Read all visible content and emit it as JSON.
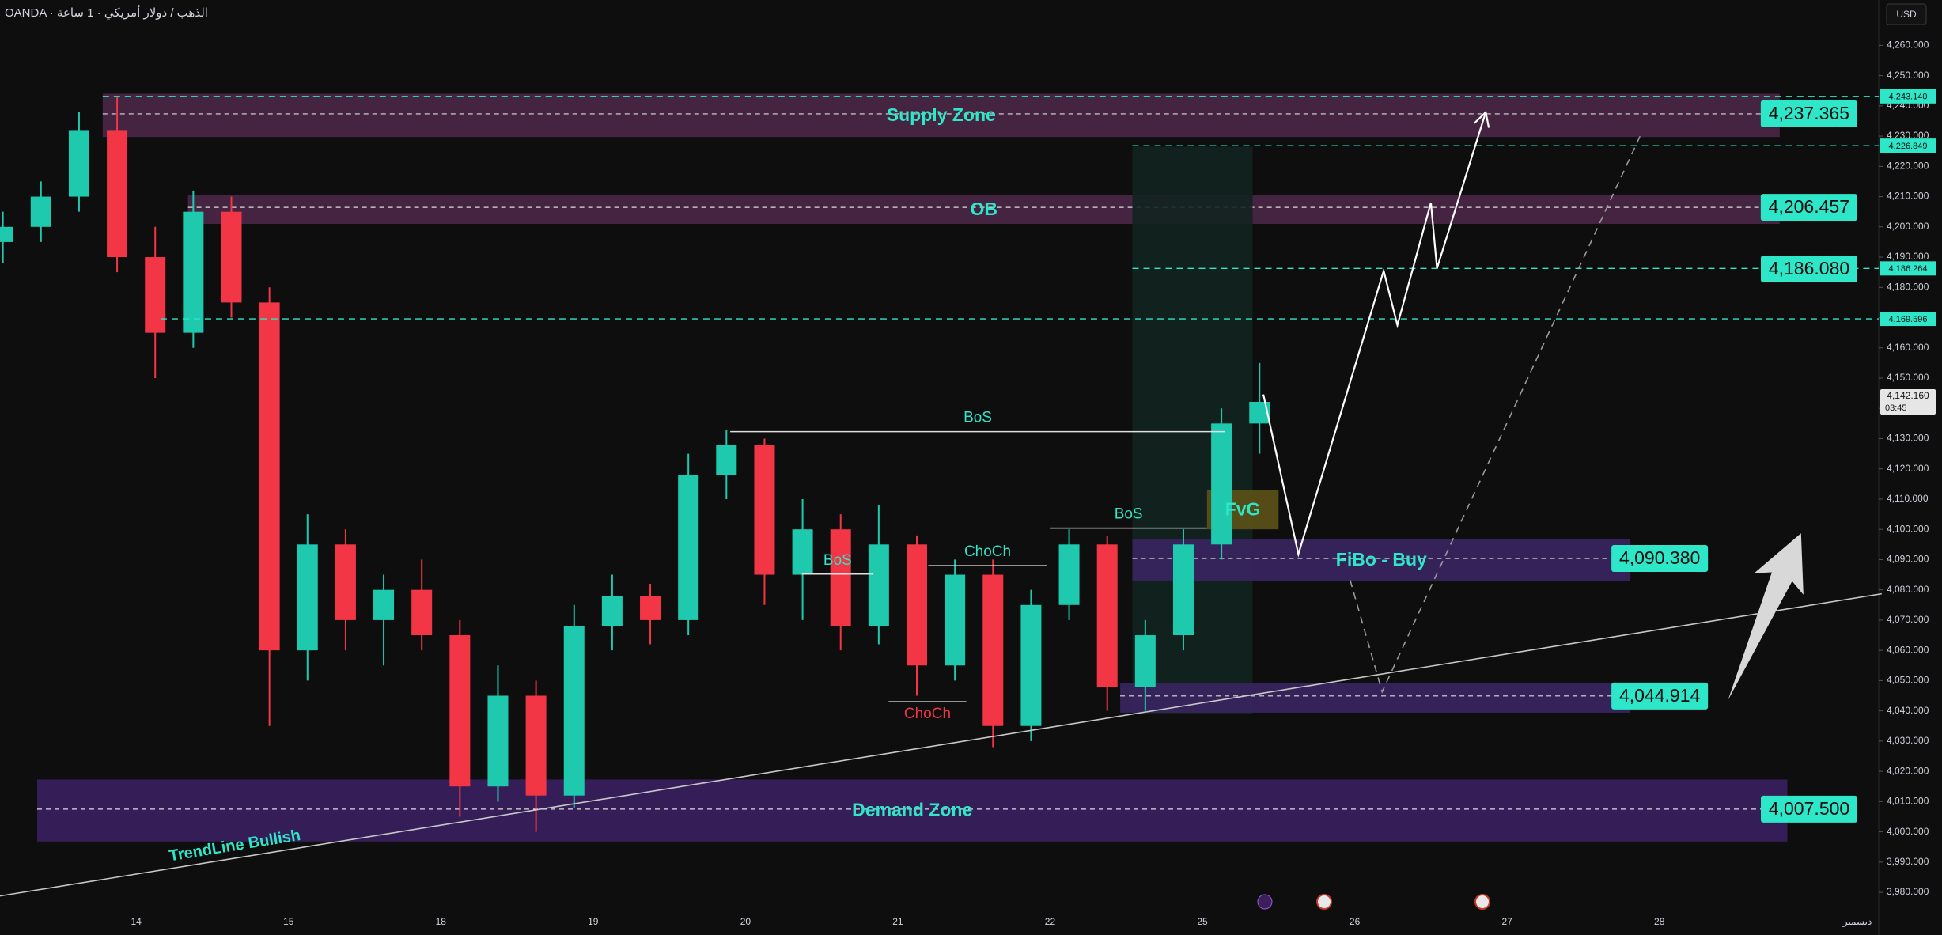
{
  "chart_data": {
    "type": "candlestick",
    "title": "OANDA · الذهب / دولار أمريكي · 1 ساعة",
    "currency": "USD",
    "up_color": "#1fc9ae",
    "down_color": "#f23645",
    "xlim": [
      -0.894,
      11.44
    ],
    "ylim": [
      3974,
      4275
    ],
    "xticks": [
      {
        "value": 0,
        "label": "14"
      },
      {
        "value": 1,
        "label": "15"
      },
      {
        "value": 2,
        "label": "18"
      },
      {
        "value": 3,
        "label": "19"
      },
      {
        "value": 4,
        "label": "20"
      },
      {
        "value": 5,
        "label": "21"
      },
      {
        "value": 6,
        "label": "22"
      },
      {
        "value": 7,
        "label": "25"
      },
      {
        "value": 8,
        "label": "26"
      },
      {
        "value": 9,
        "label": "27"
      },
      {
        "value": 10,
        "label": "28"
      },
      {
        "value": 11.3,
        "label": "ديسمبر"
      }
    ],
    "yticks": [
      {
        "value": 3980,
        "label": "3,980.000"
      },
      {
        "value": 3990,
        "label": "3,990.000"
      },
      {
        "value": 4000,
        "label": "4,000.000"
      },
      {
        "value": 4010,
        "label": "4,010.000"
      },
      {
        "value": 4020,
        "label": "4,020.000"
      },
      {
        "value": 4030,
        "label": "4,030.000"
      },
      {
        "value": 4040,
        "label": "4,040.000"
      },
      {
        "value": 4050,
        "label": "4,050.000"
      },
      {
        "value": 4060,
        "label": "4,060.000"
      },
      {
        "value": 4070,
        "label": "4,070.000"
      },
      {
        "value": 4080,
        "label": "4,080.000"
      },
      {
        "value": 4090,
        "label": "4,090.000"
      },
      {
        "value": 4100,
        "label": "4,100.000"
      },
      {
        "value": 4110,
        "label": "4,110.000"
      },
      {
        "value": 4120,
        "label": "4,120.000"
      },
      {
        "value": 4130,
        "label": "4,130.000"
      },
      {
        "value": 4140,
        "label": "4,140.000"
      },
      {
        "value": 4150,
        "label": "4,150.000"
      },
      {
        "value": 4160,
        "label": "4,160.000"
      },
      {
        "value": 4170,
        "label": "4,170.000"
      },
      {
        "value": 4180,
        "label": "4,180.000"
      },
      {
        "value": 4190,
        "label": "4,190.000"
      },
      {
        "value": 4200,
        "label": "4,200.000"
      },
      {
        "value": 4210,
        "label": "4,210.000"
      },
      {
        "value": 4220,
        "label": "4,220.000"
      },
      {
        "value": 4230,
        "label": "4,230.000"
      },
      {
        "value": 4240,
        "label": "4,240.000"
      },
      {
        "value": 4250,
        "label": "4,250.000"
      },
      {
        "value": 4260,
        "label": "4,260.000"
      }
    ],
    "x": [
      -0.875,
      -0.625,
      -0.375,
      -0.125,
      0.125,
      0.375,
      0.625,
      0.875,
      1.125,
      1.375,
      1.625,
      1.875,
      2.125,
      2.375,
      2.625,
      2.875,
      3.125,
      3.375,
      3.625,
      3.875,
      4.125,
      4.375,
      4.625,
      4.875,
      5.125,
      5.375,
      5.625,
      5.875,
      6.125,
      6.375,
      6.625,
      6.875,
      7.125,
      7.375
    ],
    "candles": [
      [
        4195,
        4205,
        4188,
        4200
      ],
      [
        4200,
        4215,
        4195,
        4210
      ],
      [
        4210,
        4238,
        4205,
        4232
      ],
      [
        4232,
        4243,
        4185,
        4190
      ],
      [
        4190,
        4200,
        4150,
        4165
      ],
      [
        4165,
        4212,
        4160,
        4205
      ],
      [
        4205,
        4210,
        4170,
        4175
      ],
      [
        4175,
        4180,
        4035,
        4060
      ],
      [
        4060,
        4105,
        4050,
        4095
      ],
      [
        4095,
        4100,
        4060,
        4070
      ],
      [
        4070,
        4085,
        4055,
        4080
      ],
      [
        4080,
        4090,
        4060,
        4065
      ],
      [
        4065,
        4070,
        4005,
        4015
      ],
      [
        4015,
        4055,
        4010,
        4045
      ],
      [
        4045,
        4050,
        4000,
        4012
      ],
      [
        4012,
        4075,
        4008,
        4068
      ],
      [
        4068,
        4085,
        4060,
        4078
      ],
      [
        4078,
        4082,
        4062,
        4070
      ],
      [
        4070,
        4125,
        4065,
        4118
      ],
      [
        4118,
        4133,
        4110,
        4128
      ],
      [
        4128,
        4130,
        4075,
        4085
      ],
      [
        4085,
        4110,
        4070,
        4100
      ],
      [
        4100,
        4105,
        4060,
        4068
      ],
      [
        4068,
        4108,
        4062,
        4095
      ],
      [
        4095,
        4098,
        4045,
        4055
      ],
      [
        4055,
        4090,
        4050,
        4085
      ],
      [
        4085,
        4090,
        4028,
        4035
      ],
      [
        4035,
        4080,
        4030,
        4075
      ],
      [
        4075,
        4100,
        4070,
        4095
      ],
      [
        4095,
        4098,
        4040,
        4048
      ],
      [
        4048,
        4070,
        4040,
        4065
      ],
      [
        4065,
        4100,
        4060,
        4095
      ],
      [
        4095,
        4140,
        4090,
        4135
      ],
      [
        4135,
        4155,
        4125,
        4142.16
      ]
    ],
    "current_price": {
      "value": 4142.16,
      "label": "4,142.160"
    },
    "countdown": "03:45",
    "zones": [
      {
        "name": "Supply Zone",
        "color": "#4a2746",
        "xlim": [
          -0.22,
          10.79
        ],
        "ylim": [
          4229.7,
          4244
        ],
        "level": {
          "value": 4237.365,
          "label": "4,237.365"
        }
      },
      {
        "name": "OB",
        "color": "#4a2746",
        "xlim": [
          0.34,
          10.79
        ],
        "ylim": [
          4201,
          4210.5
        ],
        "level": {
          "value": 4206.457,
          "label": "4,206.457"
        }
      },
      {
        "color": "#12241f",
        "xlim": [
          6.54,
          7.33
        ],
        "ylim": [
          4039,
          4226.5
        ]
      },
      {
        "name": "FvG",
        "color": "#5c5218",
        "xlim": [
          7.03,
          7.5
        ],
        "ylim": [
          4100,
          4113
        ]
      },
      {
        "name": "FiBo - Buy",
        "color": "#3a2560",
        "xlim": [
          6.54,
          9.81
        ],
        "ylim": [
          4083,
          4096.7
        ],
        "level": {
          "value": 4090.38,
          "label": "4,090.380"
        }
      },
      {
        "color": "#3a2560",
        "xlim": [
          6.46,
          9.81
        ],
        "ylim": [
          4039.4,
          4049.2
        ],
        "level": {
          "value": 4044.914,
          "label": "4,044.914"
        }
      },
      {
        "name": "Demand Zone",
        "color": "#3a2060",
        "xlim": [
          -0.65,
          10.84
        ],
        "ylim": [
          3996.8,
          4017.3
        ],
        "level": {
          "value": 4007.5,
          "label": "4,007.500"
        }
      }
    ],
    "levels": [
      {
        "value": 4186.08,
        "label": "4,186.080"
      }
    ],
    "axis_markers": [
      {
        "x": -0.22,
        "value": 4243.14,
        "label": "4,243.140"
      },
      {
        "x": 6.54,
        "value": 4226.849,
        "label": "4,226.849"
      },
      {
        "x": 6.54,
        "value": 4186.264,
        "label": "4,186.264"
      },
      {
        "x": 0.16,
        "value": 4169.596,
        "label": "4,169.596"
      }
    ],
    "structure": [
      {
        "label": "BoS",
        "x": [
          3.9,
          7.15
        ],
        "y": 4132.3,
        "color": "#2ee6c8",
        "label_side": "above"
      },
      {
        "label": "BoS",
        "x": [
          6.0,
          7.03
        ],
        "y": 4100.4,
        "color": "#2ee6c8",
        "label_side": "above"
      },
      {
        "label": "BoS",
        "x": [
          4.37,
          4.84
        ],
        "y": 4085.2,
        "color": "#2ee6c8",
        "label_side": "above"
      },
      {
        "label": "ChoCh",
        "x": [
          5.2,
          5.98
        ],
        "y": 4088,
        "color": "#2ee6c8",
        "label_side": "above"
      },
      {
        "label": "ChoCh",
        "x": [
          4.94,
          5.45
        ],
        "y": 4043,
        "color": "#f23645",
        "label_side": "below"
      }
    ],
    "trendline": {
      "label": "TrendLine Bullish",
      "x": [
        -0.894,
        11.46
      ],
      "y": [
        3978.8,
        4078.7
      ]
    },
    "projection": {
      "x": [
        7.4,
        7.63,
        8.19,
        8.28,
        8.5,
        8.54,
        8.86
      ],
      "y": [
        4144.6,
        4091.8,
        4185.5,
        4167.5,
        4208,
        4186.3,
        4237.9
      ]
    },
    "alt_projection": {
      "x": [
        7.97,
        8.18,
        9.89
      ],
      "y": [
        4083.2,
        4046.3,
        4231.8
      ]
    },
    "big_arrow": {
      "x": [
        10.45,
        10.93
      ],
      "y": [
        4043.5,
        4098.7
      ]
    }
  }
}
